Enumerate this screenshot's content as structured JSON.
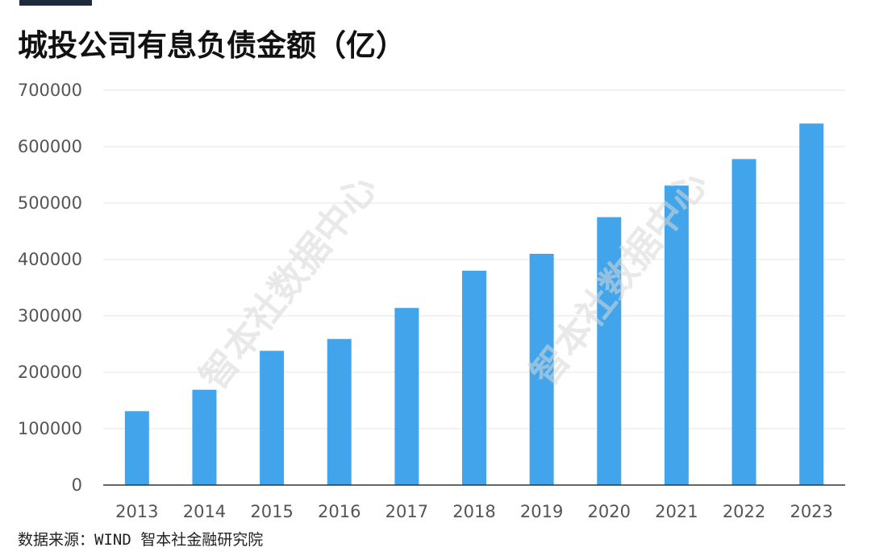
{
  "header": {
    "title": "城投公司有息负债金额（亿）"
  },
  "footer": {
    "source": "数据来源：WIND 智本社金融研究院"
  },
  "watermarks": [
    "智本社数据中心",
    "智本社数据中心"
  ],
  "chart_data": {
    "type": "bar",
    "title": "城投公司有息负债金额（亿）",
    "xlabel": "",
    "ylabel": "",
    "categories": [
      "2013",
      "2014",
      "2015",
      "2016",
      "2017",
      "2018",
      "2019",
      "2020",
      "2021",
      "2022",
      "2023"
    ],
    "values": [
      131000,
      169000,
      238000,
      259000,
      314000,
      380000,
      410000,
      475000,
      531000,
      578000,
      641000
    ],
    "ylim": [
      0,
      700000
    ],
    "yticks": [
      0,
      100000,
      200000,
      300000,
      400000,
      500000,
      600000,
      700000
    ],
    "grid": true,
    "legend": "none",
    "bar_color": "#42a5ec",
    "grid_color": "#e6e6e6",
    "axis_color": "#333333"
  }
}
